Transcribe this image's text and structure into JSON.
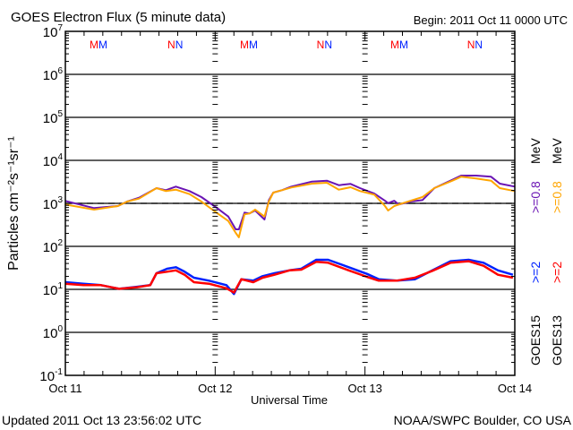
{
  "chart_data": {
    "type": "line",
    "title": "GOES Electron Flux (5 minute data)",
    "begin_label": "Begin: 2011 Oct 11 0000 UTC",
    "xlabel": "Universal Time",
    "ylabel": "Particles cm⁻²s⁻¹sr⁻¹",
    "x_units": "hours since 2011 Oct 11 0000 UTC",
    "xlim": [
      0,
      72
    ],
    "xticks": [
      {
        "hour": 0,
        "label": "Oct 11"
      },
      {
        "hour": 24,
        "label": "Oct 12"
      },
      {
        "hour": 48,
        "label": "Oct 13"
      },
      {
        "hour": 72,
        "label": "Oct 14"
      }
    ],
    "yscale": "log",
    "ylim": [
      0.1,
      10000000
    ],
    "yticks": [
      {
        "value": 10000000,
        "base": "10",
        "exp": "7"
      },
      {
        "value": 1000000,
        "base": "10",
        "exp": "6"
      },
      {
        "value": 100000,
        "base": "10",
        "exp": "5"
      },
      {
        "value": 10000,
        "base": "10",
        "exp": "4"
      },
      {
        "value": 1000,
        "base": "10",
        "exp": "3"
      },
      {
        "value": 100,
        "base": "10",
        "exp": "2"
      },
      {
        "value": 10,
        "base": "10",
        "exp": "1"
      },
      {
        "value": 1,
        "base": "10",
        "exp": "0"
      },
      {
        "value": 0.1,
        "base": "10",
        "exp": "-1"
      }
    ],
    "threshold": 1000,
    "grid": "horizontal lines at each decade",
    "markers": [
      {
        "hour": 5.3,
        "letter": "M"
      },
      {
        "hour": 17.6,
        "letter": "N"
      },
      {
        "hour": 29.4,
        "letter": "M"
      },
      {
        "hour": 41.5,
        "letter": "N"
      },
      {
        "hour": 53.5,
        "letter": "M"
      },
      {
        "hour": 65.6,
        "letter": "N"
      }
    ],
    "marker_colors": [
      "#ff0000",
      "#0022ff"
    ],
    "legend": {
      "placement": "right",
      "columns": [
        {
          "sat": "GOES15",
          "e2": ">=2",
          "e08": ">=0.8",
          "unit": "MeV",
          "c2": "#0022ff",
          "c08": "#6a14b4"
        },
        {
          "sat": "GOES13",
          "e2": ">=2",
          "e08": ">=0.8",
          "unit": "MeV",
          "c2": "#ff0000",
          "c08": "#ffa500"
        }
      ]
    },
    "series": [
      {
        "name": "GOES15 >=0.8 MeV",
        "color": "#6a14b4",
        "points": [
          [
            0,
            1140
          ],
          [
            4.6,
            776
          ],
          [
            8.4,
            866
          ],
          [
            9.9,
            1100
          ],
          [
            11.8,
            1350
          ],
          [
            14.6,
            2260
          ],
          [
            16.1,
            2020
          ],
          [
            17.7,
            2450
          ],
          [
            19.9,
            1930
          ],
          [
            21.8,
            1400
          ],
          [
            24.2,
            800
          ],
          [
            26.1,
            494
          ],
          [
            27.3,
            249
          ],
          [
            27.8,
            249
          ],
          [
            28.7,
            610
          ],
          [
            29.5,
            582
          ],
          [
            30.4,
            681
          ],
          [
            31.9,
            422
          ],
          [
            32.6,
            1190
          ],
          [
            33.3,
            1780
          ],
          [
            34.7,
            2020
          ],
          [
            36.2,
            2450
          ],
          [
            39.5,
            3210
          ],
          [
            41.9,
            3370
          ],
          [
            43.8,
            2650
          ],
          [
            45.7,
            2830
          ],
          [
            47.2,
            2260
          ],
          [
            49.5,
            1690
          ],
          [
            51.2,
            1150
          ],
          [
            51.7,
            1010
          ],
          [
            52.7,
            1150
          ],
          [
            53.4,
            940
          ],
          [
            55.3,
            1100
          ],
          [
            57.2,
            1190
          ],
          [
            59.1,
            2260
          ],
          [
            62,
            3530
          ],
          [
            63.4,
            4420
          ],
          [
            65.8,
            4420
          ],
          [
            68.2,
            4160
          ],
          [
            69.6,
            2870
          ],
          [
            72,
            2450
          ]
        ]
      },
      {
        "name": "GOES13 >=0.8 MeV",
        "color": "#ffa500",
        "points": [
          [
            0,
            940
          ],
          [
            4.6,
            715
          ],
          [
            8.4,
            866
          ],
          [
            9.9,
            1100
          ],
          [
            11.8,
            1290
          ],
          [
            14.6,
            2260
          ],
          [
            16.1,
            1930
          ],
          [
            17.7,
            2080
          ],
          [
            19.9,
            1640
          ],
          [
            21.8,
            1100
          ],
          [
            24.2,
            610
          ],
          [
            26.1,
            389
          ],
          [
            27.3,
            205
          ],
          [
            27.8,
            162
          ],
          [
            28.7,
            555
          ],
          [
            29.5,
            582
          ],
          [
            30.4,
            715
          ],
          [
            31.9,
            494
          ],
          [
            32.6,
            1100
          ],
          [
            33.3,
            1780
          ],
          [
            34.7,
            2020
          ],
          [
            36.2,
            2340
          ],
          [
            39.5,
            2870
          ],
          [
            41.9,
            3010
          ],
          [
            43.8,
            2080
          ],
          [
            45.7,
            2370
          ],
          [
            47.2,
            1930
          ],
          [
            49.5,
            1590
          ],
          [
            51.2,
            866
          ],
          [
            51.7,
            681
          ],
          [
            52.7,
            866
          ],
          [
            53.4,
            940
          ],
          [
            55.3,
            1150
          ],
          [
            57.2,
            1400
          ],
          [
            59.1,
            2260
          ],
          [
            62,
            3370
          ],
          [
            63.4,
            4160
          ],
          [
            65.8,
            3780
          ],
          [
            68.2,
            3370
          ],
          [
            69.6,
            2260
          ],
          [
            72,
            1930
          ]
        ]
      },
      {
        "name": "GOES15 >=2 MeV",
        "color": "#0022ff",
        "points": [
          [
            0,
            14.7
          ],
          [
            2.9,
            13.5
          ],
          [
            5.7,
            12.5
          ],
          [
            8.6,
            10.3
          ],
          [
            11.5,
            11.5
          ],
          [
            13.6,
            12.5
          ],
          [
            14.6,
            23.7
          ],
          [
            16.3,
            30.2
          ],
          [
            17.7,
            32.7
          ],
          [
            19.1,
            25.7
          ],
          [
            20.6,
            18.7
          ],
          [
            23,
            15.9
          ],
          [
            25.8,
            12.5
          ],
          [
            27,
            7.8
          ],
          [
            28.2,
            17.2
          ],
          [
            30.1,
            15.9
          ],
          [
            31.6,
            20.2
          ],
          [
            33.5,
            23.7
          ],
          [
            35.9,
            27.7
          ],
          [
            37.8,
            30.2
          ],
          [
            40.2,
            48.7
          ],
          [
            42.1,
            48.7
          ],
          [
            45.4,
            32.7
          ],
          [
            48.3,
            22.9
          ],
          [
            50.2,
            17.2
          ],
          [
            53.1,
            15.9
          ],
          [
            56,
            17.2
          ],
          [
            58.8,
            27.7
          ],
          [
            61.7,
            45
          ],
          [
            64.6,
            48.7
          ],
          [
            67,
            41.6
          ],
          [
            69.3,
            27.7
          ],
          [
            71.7,
            21.9
          ]
        ]
      },
      {
        "name": "GOES13 >=2 MeV",
        "color": "#ff0000",
        "points": [
          [
            0,
            13.5
          ],
          [
            2.9,
            12.5
          ],
          [
            5.7,
            12.5
          ],
          [
            8.6,
            10.3
          ],
          [
            11.5,
            11.2
          ],
          [
            13.6,
            12.5
          ],
          [
            14.6,
            23.7
          ],
          [
            16.3,
            25.7
          ],
          [
            17.7,
            27.7
          ],
          [
            19.1,
            21.9
          ],
          [
            20.6,
            14.7
          ],
          [
            23,
            13.5
          ],
          [
            25.8,
            10.6
          ],
          [
            27,
            8.4
          ],
          [
            28.2,
            17.2
          ],
          [
            30.1,
            14.7
          ],
          [
            31.6,
            18.7
          ],
          [
            33.5,
            21.9
          ],
          [
            35.9,
            27.7
          ],
          [
            37.8,
            28.7
          ],
          [
            40.2,
            43.6
          ],
          [
            42.1,
            41.6
          ],
          [
            45.4,
            27.7
          ],
          [
            48.3,
            19.6
          ],
          [
            50.2,
            15.9
          ],
          [
            53.1,
            15.9
          ],
          [
            56,
            18.7
          ],
          [
            58.8,
            27
          ],
          [
            61.7,
            41.6
          ],
          [
            64.6,
            45
          ],
          [
            67,
            35.3
          ],
          [
            69.3,
            21.9
          ],
          [
            71.7,
            18.7
          ]
        ]
      }
    ]
  },
  "footer": {
    "updated": "Updated 2011 Oct 13 23:56:02 UTC",
    "credit": "NOAA/SWPC Boulder, CO USA"
  }
}
